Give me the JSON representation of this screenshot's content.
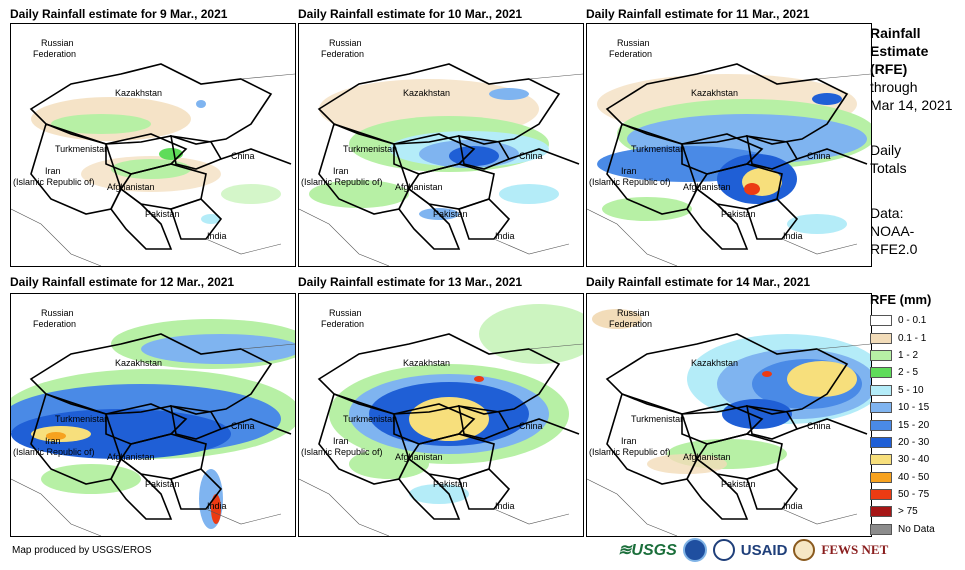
{
  "panels": [
    {
      "title": "Daily Rainfall estimate for 9 Mar., 2021"
    },
    {
      "title": "Daily Rainfall estimate for 10 Mar., 2021"
    },
    {
      "title": "Daily Rainfall estimate for 11 Mar., 2021"
    },
    {
      "title": "Daily Rainfall estimate for 12 Mar., 2021"
    },
    {
      "title": "Daily Rainfall estimate for 13 Mar., 2021"
    },
    {
      "title": "Daily Rainfall estimate for 14 Mar., 2021"
    }
  ],
  "map_labels": {
    "russia_1": "Russian",
    "russia_2": "Federation",
    "kazakhstan": "Kazakhstan",
    "turkmenistan": "Turkmenistan",
    "iran_1": "Iran",
    "iran_2": "(Islamic Republic of)",
    "afghanistan": "Afghanistan",
    "pakistan": "Pakistan",
    "china": "China",
    "india": "India"
  },
  "sidebar": {
    "heading_1": "Rainfall",
    "heading_2": "Estimate",
    "heading_3": "(RFE)",
    "through": "through",
    "date": "Mar 14, 2021",
    "daily_1": "Daily",
    "daily_2": "Totals",
    "data_1": "Data:",
    "data_2": "NOAA-",
    "data_3": "RFE2.0"
  },
  "legend": {
    "title": "RFE (mm)",
    "items": [
      {
        "label": "0 - 0.1",
        "color": "#ffffff"
      },
      {
        "label": "0.1 - 1",
        "color": "#f2dcb9"
      },
      {
        "label": "1 - 2",
        "color": "#b7f0a5"
      },
      {
        "label": "2 - 5",
        "color": "#5fdc5a"
      },
      {
        "label": "5 - 10",
        "color": "#b4ecf8"
      },
      {
        "label": "10 - 15",
        "color": "#7fb4f0"
      },
      {
        "label": "15 - 20",
        "color": "#4a8ae6"
      },
      {
        "label": "20 - 30",
        "color": "#1f5fd6"
      },
      {
        "label": "30 - 40",
        "color": "#f7df7c"
      },
      {
        "label": "40 - 50",
        "color": "#f7a21f"
      },
      {
        "label": "50 - 75",
        "color": "#ec3b13"
      },
      {
        "label": "> 75",
        "color": "#a61616"
      },
      {
        "label": "No Data",
        "color": "#8c8c8c"
      }
    ]
  },
  "credit": "Map produced by USGS/EROS",
  "logos": {
    "usgs": "≋USGS",
    "usaid": "USAID",
    "fews": "FEWS NET"
  }
}
